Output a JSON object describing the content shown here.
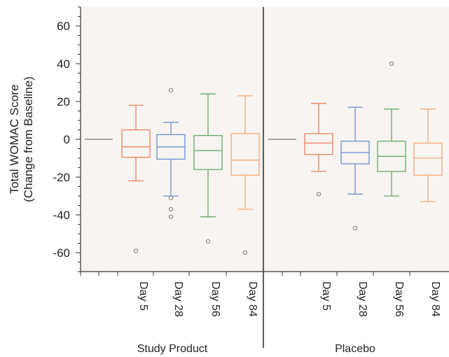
{
  "chart_data": {
    "type": "boxplot",
    "ylabel_line1": "Total WOMAC Score",
    "ylabel_line2": "(Change from Baseline)",
    "ylim": [
      -70,
      70
    ],
    "yticks": [
      "60",
      "40",
      "20",
      "0",
      "-20",
      "-40",
      "-60"
    ],
    "ytick_values": [
      60,
      40,
      20,
      0,
      -20,
      -40,
      -60
    ],
    "colors": {
      "baseline": "#999999",
      "day5": "#f07f60",
      "day28": "#6f8fd0",
      "day56": "#6aa86a",
      "day84": "#f5a978",
      "background": "#f7f4f1",
      "outlier": "#777777"
    },
    "groups": [
      {
        "name": "Study Product",
        "baseline": 0,
        "boxes": [
          {
            "label": "Day 5",
            "color_key": "day5",
            "whisker_low": -22,
            "q1": -9.5,
            "median": -4,
            "q3": 5,
            "whisker_high": 18,
            "outliers": [
              -59
            ]
          },
          {
            "label": "Day 28",
            "color_key": "day28",
            "whisker_low": -30,
            "q1": -10.5,
            "median": -4,
            "q3": 2.5,
            "whisker_high": 9,
            "outliers": [
              26,
              -31,
              -37,
              -41
            ]
          },
          {
            "label": "Day 56",
            "color_key": "day56",
            "whisker_low": -41,
            "q1": -16,
            "median": -6,
            "q3": 2,
            "whisker_high": 24,
            "outliers": [
              -54
            ]
          },
          {
            "label": "Day 84",
            "color_key": "day84",
            "whisker_low": -37,
            "q1": -19,
            "median": -11,
            "q3": 3,
            "whisker_high": 23,
            "outliers": [
              -60
            ]
          }
        ]
      },
      {
        "name": "Placebo",
        "baseline": 0,
        "boxes": [
          {
            "label": "Day 5",
            "color_key": "day5",
            "whisker_low": -17,
            "q1": -8,
            "median": -2,
            "q3": 3,
            "whisker_high": 19,
            "outliers": [
              -29
            ]
          },
          {
            "label": "Day 28",
            "color_key": "day28",
            "whisker_low": -29,
            "q1": -13,
            "median": -7,
            "q3": -1,
            "whisker_high": 17,
            "outliers": [
              -47
            ]
          },
          {
            "label": "Day 56",
            "color_key": "day56",
            "whisker_low": -30,
            "q1": -17,
            "median": -9,
            "q3": -1,
            "whisker_high": 16,
            "outliers": [
              40
            ]
          },
          {
            "label": "Day 84",
            "color_key": "day84",
            "whisker_low": -33,
            "q1": -19,
            "median": -10,
            "q3": -2,
            "whisker_high": 16,
            "outliers": []
          }
        ]
      }
    ]
  }
}
